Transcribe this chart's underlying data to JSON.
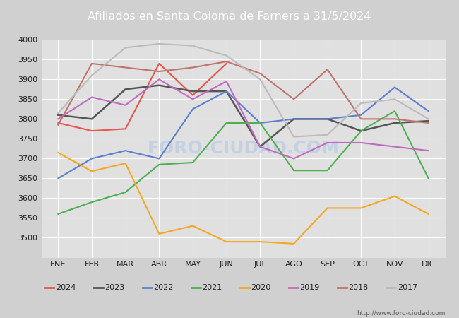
{
  "title": "Afiliados en Santa Coloma de Farners a 31/5/2024",
  "title_color": "#ffffff",
  "title_bg_color": "#4472c4",
  "x_labels": [
    "ENE",
    "FEB",
    "MAR",
    "ABR",
    "MAY",
    "JUN",
    "JUL",
    "AGO",
    "SEP",
    "OCT",
    "NOV",
    "DIC"
  ],
  "ylim": [
    3450,
    4000
  ],
  "watermark": "FORO-CIUDAD.COM",
  "url": "http://www.foro-ciudad.com",
  "series": {
    "2024": {
      "color": "#e8534a",
      "linewidth": 1.5,
      "data": [
        3790,
        3770,
        3775,
        3940,
        3860,
        3940,
        null,
        null,
        null,
        null,
        null,
        null
      ]
    },
    "2023": {
      "color": "#555555",
      "linewidth": 1.8,
      "data": [
        3810,
        3800,
        3875,
        3885,
        3870,
        3870,
        3730,
        3800,
        3800,
        3770,
        3790,
        3795
      ]
    },
    "2022": {
      "color": "#5b7fce",
      "linewidth": 1.5,
      "data": [
        3650,
        3700,
        3720,
        3700,
        3825,
        3870,
        3790,
        3800,
        3800,
        3810,
        3880,
        3820
      ]
    },
    "2021": {
      "color": "#4caf50",
      "linewidth": 1.5,
      "data": [
        3560,
        3590,
        3615,
        3685,
        3690,
        3790,
        3790,
        3670,
        3670,
        3770,
        3820,
        3650
      ]
    },
    "2020": {
      "color": "#f5a623",
      "linewidth": 1.5,
      "data": [
        3715,
        3668,
        3688,
        3510,
        3530,
        3490,
        3490,
        3485,
        3575,
        3575,
        3605,
        3560
      ]
    },
    "2019": {
      "color": "#bf6bbd",
      "linewidth": 1.5,
      "data": [
        3800,
        3855,
        3835,
        3900,
        3850,
        3895,
        3730,
        3700,
        3740,
        3740,
        3730,
        3720
      ]
    },
    "2018": {
      "color": "#c0736a",
      "linewidth": 1.5,
      "data": [
        3785,
        3940,
        3930,
        3920,
        3930,
        3945,
        3915,
        3850,
        3925,
        3800,
        3800,
        3790
      ]
    },
    "2017": {
      "color": "#bbbbbb",
      "linewidth": 1.5,
      "data": [
        3815,
        3910,
        3980,
        3990,
        3985,
        3960,
        3900,
        3755,
        3760,
        3840,
        3850,
        3800
      ]
    }
  },
  "legend_order": [
    "2024",
    "2023",
    "2022",
    "2021",
    "2020",
    "2019",
    "2018",
    "2017"
  ],
  "fig_bg_color": "#d0d0d0",
  "plot_bg_color": "#e0e0e0",
  "grid_color": "#ffffff",
  "font_color": "#222222"
}
